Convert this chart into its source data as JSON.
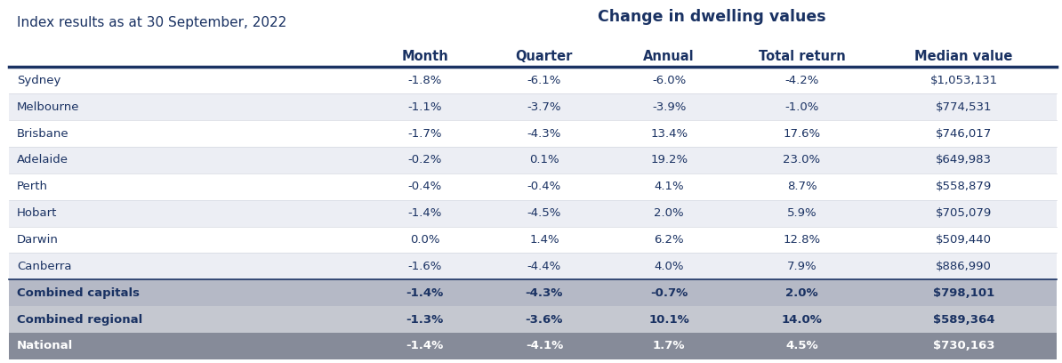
{
  "title_top": "Change in dwelling values",
  "title_left": "Index results as at 30 September, 2022",
  "columns": [
    "Month",
    "Quarter",
    "Annual",
    "Total return",
    "Median value"
  ],
  "rows": [
    {
      "city": "Sydney",
      "month": "-1.8%",
      "quarter": "-6.1%",
      "annual": "-6.0%",
      "total": "-4.2%",
      "median": "$1,053,131",
      "bold": false,
      "bg": "#ffffff",
      "text_white": false
    },
    {
      "city": "Melbourne",
      "month": "-1.1%",
      "quarter": "-3.7%",
      "annual": "-3.9%",
      "total": "-1.0%",
      "median": "$774,531",
      "bold": false,
      "bg": "#eceef4",
      "text_white": false
    },
    {
      "city": "Brisbane",
      "month": "-1.7%",
      "quarter": "-4.3%",
      "annual": "13.4%",
      "total": "17.6%",
      "median": "$746,017",
      "bold": false,
      "bg": "#ffffff",
      "text_white": false
    },
    {
      "city": "Adelaide",
      "month": "-0.2%",
      "quarter": "0.1%",
      "annual": "19.2%",
      "total": "23.0%",
      "median": "$649,983",
      "bold": false,
      "bg": "#eceef4",
      "text_white": false
    },
    {
      "city": "Perth",
      "month": "-0.4%",
      "quarter": "-0.4%",
      "annual": "4.1%",
      "total": "8.7%",
      "median": "$558,879",
      "bold": false,
      "bg": "#ffffff",
      "text_white": false
    },
    {
      "city": "Hobart",
      "month": "-1.4%",
      "quarter": "-4.5%",
      "annual": "2.0%",
      "total": "5.9%",
      "median": "$705,079",
      "bold": false,
      "bg": "#eceef4",
      "text_white": false
    },
    {
      "city": "Darwin",
      "month": "0.0%",
      "quarter": "1.4%",
      "annual": "6.2%",
      "total": "12.8%",
      "median": "$509,440",
      "bold": false,
      "bg": "#ffffff",
      "text_white": false
    },
    {
      "city": "Canberra",
      "month": "-1.6%",
      "quarter": "-4.4%",
      "annual": "4.0%",
      "total": "7.9%",
      "median": "$886,990",
      "bold": false,
      "bg": "#eceef4",
      "text_white": false
    },
    {
      "city": "Combined capitals",
      "month": "-1.4%",
      "quarter": "-4.3%",
      "annual": "-0.7%",
      "total": "2.0%",
      "median": "$798,101",
      "bold": true,
      "bg": "#b5b9c6",
      "text_white": false
    },
    {
      "city": "Combined regional",
      "month": "-1.3%",
      "quarter": "-3.6%",
      "annual": "10.1%",
      "total": "14.0%",
      "median": "$589,364",
      "bold": true,
      "bg": "#c5c8d0",
      "text_white": false
    },
    {
      "city": "National",
      "month": "-1.4%",
      "quarter": "-4.1%",
      "annual": "1.7%",
      "total": "4.5%",
      "median": "$730,163",
      "bold": true,
      "bg": "#868b99",
      "text_white": true
    }
  ],
  "header_color": "#1a3263",
  "top_line_color": "#1a3263",
  "separator_color": "#d5d8e0",
  "figsize": [
    11.94,
    4.08
  ],
  "dpi": 100
}
